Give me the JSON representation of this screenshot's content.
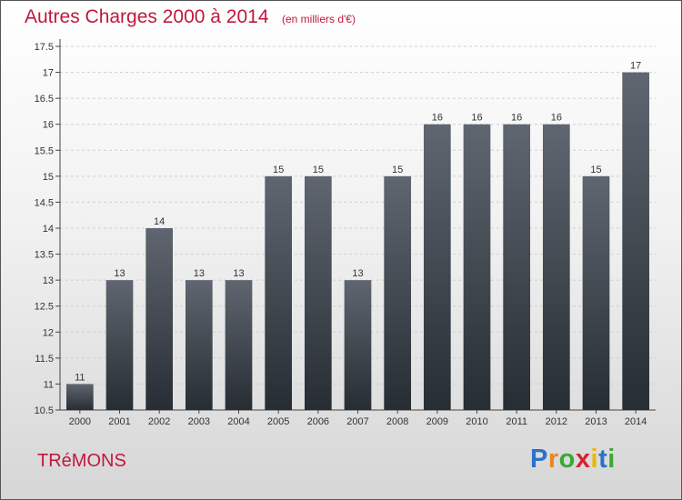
{
  "header": {
    "title": "Autres Charges 2000 à 2014",
    "subtitle": "(en milliers d'€)"
  },
  "footer": {
    "commune": "TRéMONS",
    "logo_letters": [
      "P",
      "r",
      "o",
      "x",
      "i",
      "t",
      "i"
    ],
    "logo_colors": [
      "#2a73c8",
      "#e8861f",
      "#3aa836",
      "#d7212e",
      "#f0b400",
      "#2a73c8",
      "#3aa836"
    ]
  },
  "colors": {
    "accent": "#c0183c",
    "bar_top": "#5f6670",
    "bar_bottom": "#262d33",
    "grid": "#cfcfcf"
  },
  "chart_data": {
    "type": "bar",
    "title": "Autres Charges 2000 à 2014",
    "categories": [
      "2000",
      "2001",
      "2002",
      "2003",
      "2004",
      "2005",
      "2006",
      "2007",
      "2008",
      "2009",
      "2010",
      "2011",
      "2012",
      "2013",
      "2014"
    ],
    "values": [
      11,
      13,
      14,
      13,
      13,
      15,
      15,
      13,
      15,
      16,
      16,
      16,
      16,
      15,
      17
    ],
    "ylim": [
      10.5,
      17.5
    ],
    "yticks": [
      "10.5",
      "11",
      "11.5",
      "12",
      "12.5",
      "13",
      "13.5",
      "14",
      "14.5",
      "15",
      "15.5",
      "16",
      "16.5",
      "17",
      "17.5"
    ],
    "grid": true,
    "xlabel": "",
    "ylabel": ""
  }
}
